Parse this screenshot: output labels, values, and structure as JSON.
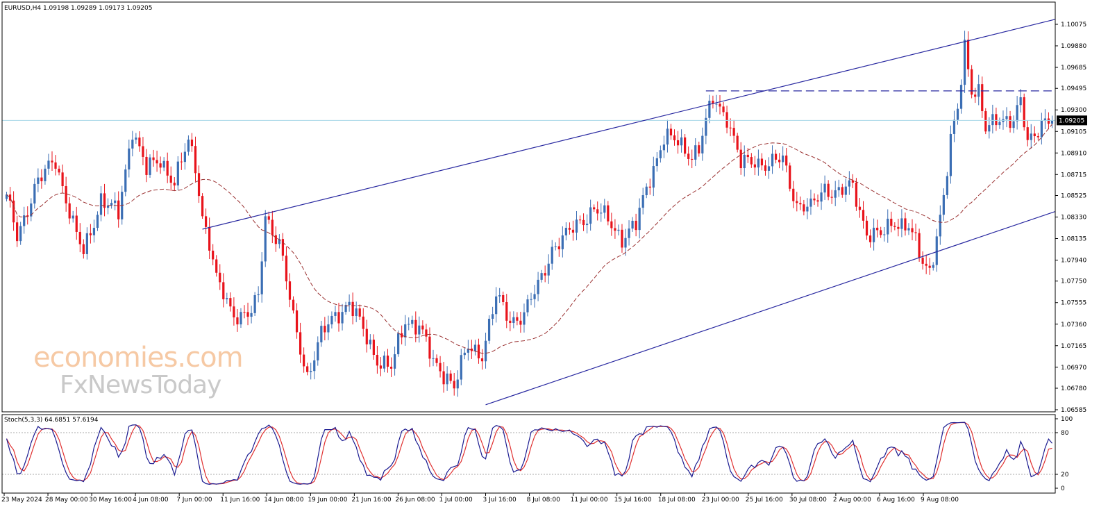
{
  "chart_data": {
    "type": "candlestick",
    "symbol_header": "EURUSD,H4  1.09198 1.09289 1.09173 1.09205",
    "current_price_label": "1.09205",
    "current_price": 1.09205,
    "y_range": [
      1.06585,
      1.10075
    ],
    "y_ticks": [
      "1.10075",
      "1.09880",
      "1.09685",
      "1.09495",
      "1.09300",
      "1.09105",
      "1.08910",
      "1.08715",
      "1.08525",
      "1.08330",
      "1.08135",
      "1.07940",
      "1.07750",
      "1.07555",
      "1.07360",
      "1.07165",
      "1.06970",
      "1.06780",
      "1.06585"
    ],
    "x_tick_labels": [
      "23 May 2024",
      "28 May 00:00",
      "30 May 16:00",
      "4 Jun 08:00",
      "7 Jun 00:00",
      "11 Jun 16:00",
      "14 Jun 08:00",
      "19 Jun 00:00",
      "21 Jun 16:00",
      "26 Jun 08:00",
      "1 Jul 00:00",
      "3 Jul 16:00",
      "8 Jul 08:00",
      "11 Jul 00:00",
      "15 Jul 16:00",
      "18 Jul 08:00",
      "23 Jul 00:00",
      "25 Jul 16:00",
      "30 Jul 08:00",
      "2 Aug 00:00",
      "6 Aug 16:00",
      "9 Aug 08:00"
    ],
    "anchors": [
      [
        0,
        1.085
      ],
      [
        3,
        1.0815
      ],
      [
        8,
        1.086
      ],
      [
        14,
        1.0885
      ],
      [
        20,
        1.0815
      ],
      [
        22,
        1.08
      ],
      [
        27,
        1.085
      ],
      [
        32,
        1.0835
      ],
      [
        36,
        1.0915
      ],
      [
        40,
        1.0875
      ],
      [
        44,
        1.0885
      ],
      [
        48,
        1.0865
      ],
      [
        52,
        1.09
      ],
      [
        54,
        1.088
      ],
      [
        56,
        1.0835
      ],
      [
        58,
        1.081
      ],
      [
        60,
        1.0775
      ],
      [
        64,
        1.075
      ],
      [
        66,
        1.0745
      ],
      [
        70,
        1.0745
      ],
      [
        72,
        1.076
      ],
      [
        74,
        1.0835
      ],
      [
        78,
        1.081
      ],
      [
        82,
        1.074
      ],
      [
        86,
        1.069
      ],
      [
        90,
        1.0725
      ],
      [
        94,
        1.0745
      ],
      [
        98,
        1.0755
      ],
      [
        102,
        1.073
      ],
      [
        106,
        1.0705
      ],
      [
        110,
        1.0695
      ],
      [
        114,
        1.074
      ],
      [
        118,
        1.0735
      ],
      [
        122,
        1.07
      ],
      [
        126,
        1.069
      ],
      [
        128,
        1.068
      ],
      [
        132,
        1.0715
      ],
      [
        136,
        1.071
      ],
      [
        140,
        1.076
      ],
      [
        144,
        1.074
      ],
      [
        148,
        1.0745
      ],
      [
        152,
        1.077
      ],
      [
        156,
        1.0805
      ],
      [
        160,
        1.0815
      ],
      [
        164,
        1.083
      ],
      [
        168,
        1.084
      ],
      [
        172,
        1.083
      ],
      [
        176,
        1.0815
      ],
      [
        180,
        1.0825
      ],
      [
        184,
        1.087
      ],
      [
        188,
        1.0905
      ],
      [
        192,
        1.09
      ],
      [
        196,
        1.089
      ],
      [
        198,
        1.0895
      ],
      [
        202,
        1.094
      ],
      [
        206,
        1.0925
      ],
      [
        210,
        1.088
      ],
      [
        214,
        1.0885
      ],
      [
        218,
        1.088
      ],
      [
        222,
        1.0885
      ],
      [
        226,
        1.0845
      ],
      [
        230,
        1.084
      ],
      [
        234,
        1.086
      ],
      [
        238,
        1.0855
      ],
      [
        242,
        1.086
      ],
      [
        246,
        1.082
      ],
      [
        250,
        1.0815
      ],
      [
        254,
        1.083
      ],
      [
        258,
        1.0825
      ],
      [
        262,
        1.079
      ],
      [
        264,
        1.0785
      ],
      [
        268,
        1.085
      ],
      [
        270,
        1.09
      ],
      [
        272,
        1.093
      ],
      [
        274,
        1.099
      ],
      [
        276,
        1.095
      ],
      [
        278,
        1.0945
      ],
      [
        280,
        1.091
      ],
      [
        284,
        1.0925
      ],
      [
        288,
        1.092
      ],
      [
        290,
        1.0935
      ],
      [
        292,
        1.09
      ],
      [
        296,
        1.092
      ]
    ],
    "ma_period": 34,
    "stochastic": {
      "label": "Stoch(5,3,3) 64.6851 57.6194",
      "main_last": 64.6851,
      "signal_last": 57.6194,
      "levels": [
        "100",
        "80",
        "20",
        "0"
      ]
    },
    "trendlines": [
      {
        "t1": 56,
        "p1": 1.0822,
        "t2": 300,
        "p2": 1.1012,
        "style": "solid"
      },
      {
        "t1": 137,
        "p1": 1.0663,
        "t2": 312,
        "p2": 1.0838,
        "style": "solid"
      }
    ],
    "resistance_level": 1.09472,
    "resistance_span": [
      200,
      300
    ],
    "colors": {
      "bull": "#3b6eb4",
      "bear": "#e8131b",
      "ma": "#9a3030",
      "trend": "#2828a0",
      "stoch_main": "#1a1a90",
      "stoch_signal": "#e03030"
    }
  },
  "watermark": {
    "line1": "economies.com",
    "line2": "FxNewsToday"
  }
}
